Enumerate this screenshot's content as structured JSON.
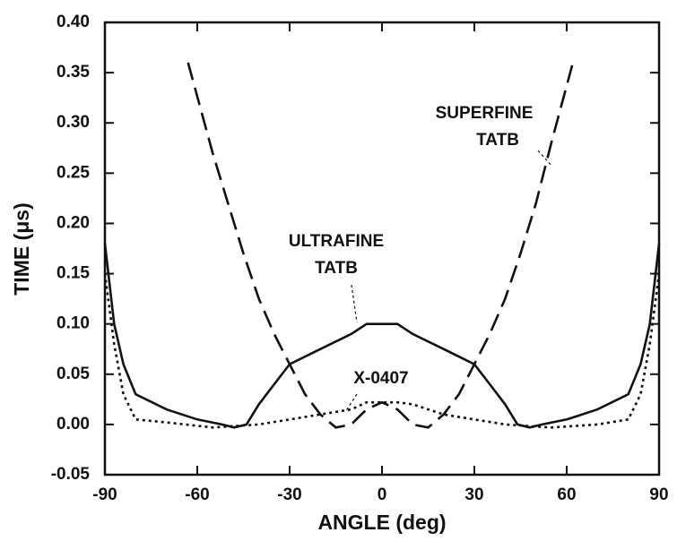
{
  "chart_data": {
    "type": "line",
    "xlabel": "ANGLE  (deg)",
    "ylabel": "TIME  (μs)",
    "xlim": [
      -90,
      90
    ],
    "xticks": [
      -90,
      -60,
      -30,
      0,
      30,
      60,
      90
    ],
    "ylim": [
      -0.05,
      0.4
    ],
    "yticks": [
      {
        "value": -0.05,
        "label": "-0.05"
      },
      {
        "value": 0,
        "label": "0.00"
      },
      {
        "value": 0.05,
        "label": "0.05"
      },
      {
        "value": 0.1,
        "label": "0.10"
      },
      {
        "value": 0.15,
        "label": "0.15"
      },
      {
        "value": 0.2,
        "label": "0.20"
      },
      {
        "value": 0.25,
        "label": "0.25"
      },
      {
        "value": 0.3,
        "label": "0.30"
      },
      {
        "value": 0.35,
        "label": "0.35"
      },
      {
        "value": 0.4,
        "label": "0.40"
      }
    ],
    "series": [
      {
        "label": [
          "SUPERFINE",
          "TATB"
        ],
        "color": "#111",
        "style": "dashed",
        "x": [
          -63,
          -55,
          -50,
          -45,
          -40,
          -35,
          -30,
          -25,
          -20,
          -15,
          -10,
          -5,
          0,
          5,
          10,
          15,
          20,
          25,
          30,
          35,
          40,
          45,
          50,
          55,
          62
        ],
        "values": [
          0.36,
          0.27,
          0.22,
          0.17,
          0.125,
          0.09,
          0.06,
          0.03,
          0.01,
          -0.003,
          0.0,
          0.015,
          0.022,
          0.015,
          0.0,
          -0.003,
          0.01,
          0.03,
          0.06,
          0.09,
          0.125,
          0.17,
          0.22,
          0.28,
          0.36
        ]
      },
      {
        "label": [
          "ULTRAFINE",
          "TATB"
        ],
        "color": "#111",
        "style": "solid",
        "x": [
          -90,
          -87,
          -84,
          -80,
          -70,
          -60,
          -52,
          -48,
          -44,
          -40,
          -35,
          -30,
          -20,
          -10,
          -5,
          0,
          5,
          10,
          20,
          30,
          35,
          40,
          44,
          48,
          52,
          60,
          70,
          80,
          84,
          87,
          90
        ],
        "values": [
          0.18,
          0.1,
          0.06,
          0.03,
          0.015,
          0.005,
          0.0,
          -0.003,
          0.0,
          0.02,
          0.04,
          0.06,
          0.075,
          0.09,
          0.1,
          0.1,
          0.1,
          0.09,
          0.075,
          0.06,
          0.04,
          0.02,
          0.0,
          -0.003,
          0.0,
          0.005,
          0.015,
          0.03,
          0.06,
          0.1,
          0.18
        ]
      },
      {
        "label": [
          "X-0407"
        ],
        "color": "#111",
        "style": "dotted",
        "x": [
          -90,
          -87,
          -84,
          -80,
          -70,
          -55,
          -40,
          -30,
          -20,
          -10,
          -5,
          0,
          5,
          10,
          20,
          30,
          40,
          55,
          70,
          80,
          84,
          87,
          90
        ],
        "values": [
          0.15,
          0.08,
          0.03,
          0.005,
          0.002,
          -0.003,
          0.0,
          0.005,
          0.01,
          0.015,
          0.022,
          0.022,
          0.022,
          0.02,
          0.01,
          0.005,
          0.0,
          -0.003,
          0.0,
          0.005,
          0.03,
          0.08,
          0.15
        ]
      }
    ]
  }
}
